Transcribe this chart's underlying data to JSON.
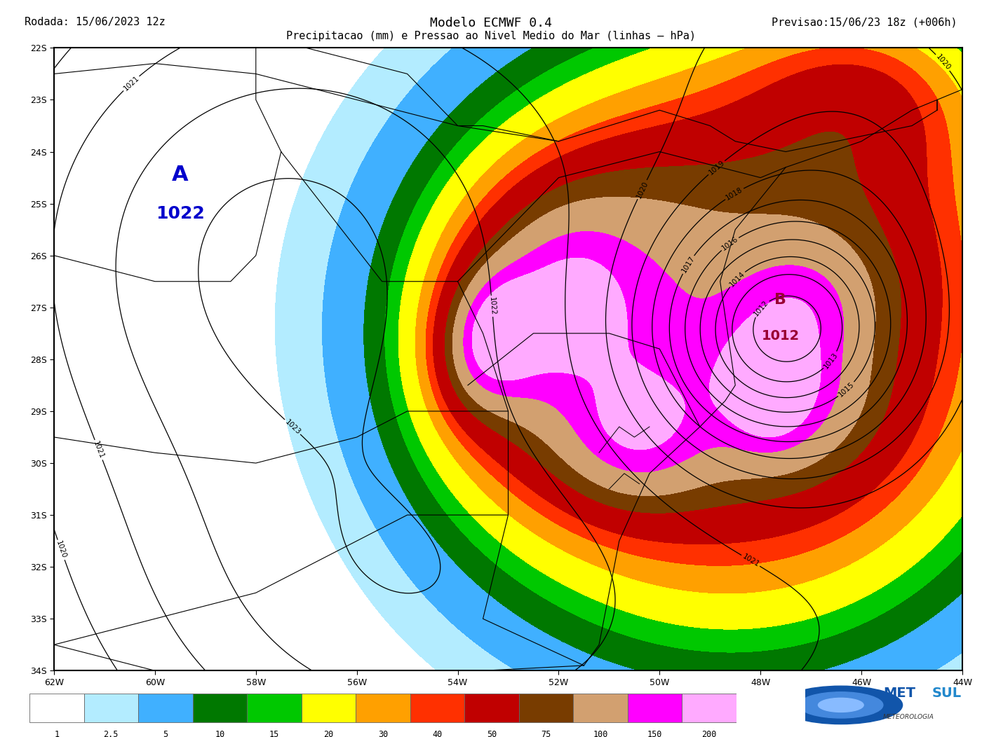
{
  "title_left": "Rodada: 15/06/2023 12z",
  "title_center": "Modelo ECMWF 0.4",
  "title_right": "Previsao:15/06/23 18z (+006h)",
  "subtitle": "Precipitacao (mm) e Pressao ao Nivel Medio do Mar (linhas – hPa)",
  "lon_min": -62,
  "lon_max": -44,
  "lat_min": -34,
  "lat_max": -22,
  "lon_ticks": [
    -62,
    -60,
    -58,
    -56,
    -54,
    -52,
    -50,
    -48,
    -46,
    -44
  ],
  "lat_ticks": [
    -22,
    -23,
    -24,
    -25,
    -26,
    -27,
    -28,
    -29,
    -30,
    -31,
    -32,
    -33,
    -34
  ],
  "precip_levels": [
    1,
    2.5,
    5,
    10,
    15,
    20,
    30,
    40,
    50,
    75,
    100,
    150,
    200
  ],
  "precip_colors": [
    "#ffffff",
    "#b3ecff",
    "#40b0ff",
    "#007800",
    "#00c800",
    "#ffff00",
    "#ffa000",
    "#ff3000",
    "#c00000",
    "#783c00",
    "#d2a070",
    "#ff00ff",
    "#ffaaff"
  ],
  "legend_labels": [
    "1",
    "2.5",
    "5",
    "10",
    "15",
    "20",
    "30",
    "40",
    "50",
    "75",
    "100",
    "150",
    "200"
  ],
  "background_color": "#ffffff",
  "map_border_color": "#000000",
  "contour_color": "#000000",
  "high_lon": -59.5,
  "high_lat": -24.7,
  "low_lon": -47.6,
  "low_lat": -27.1
}
